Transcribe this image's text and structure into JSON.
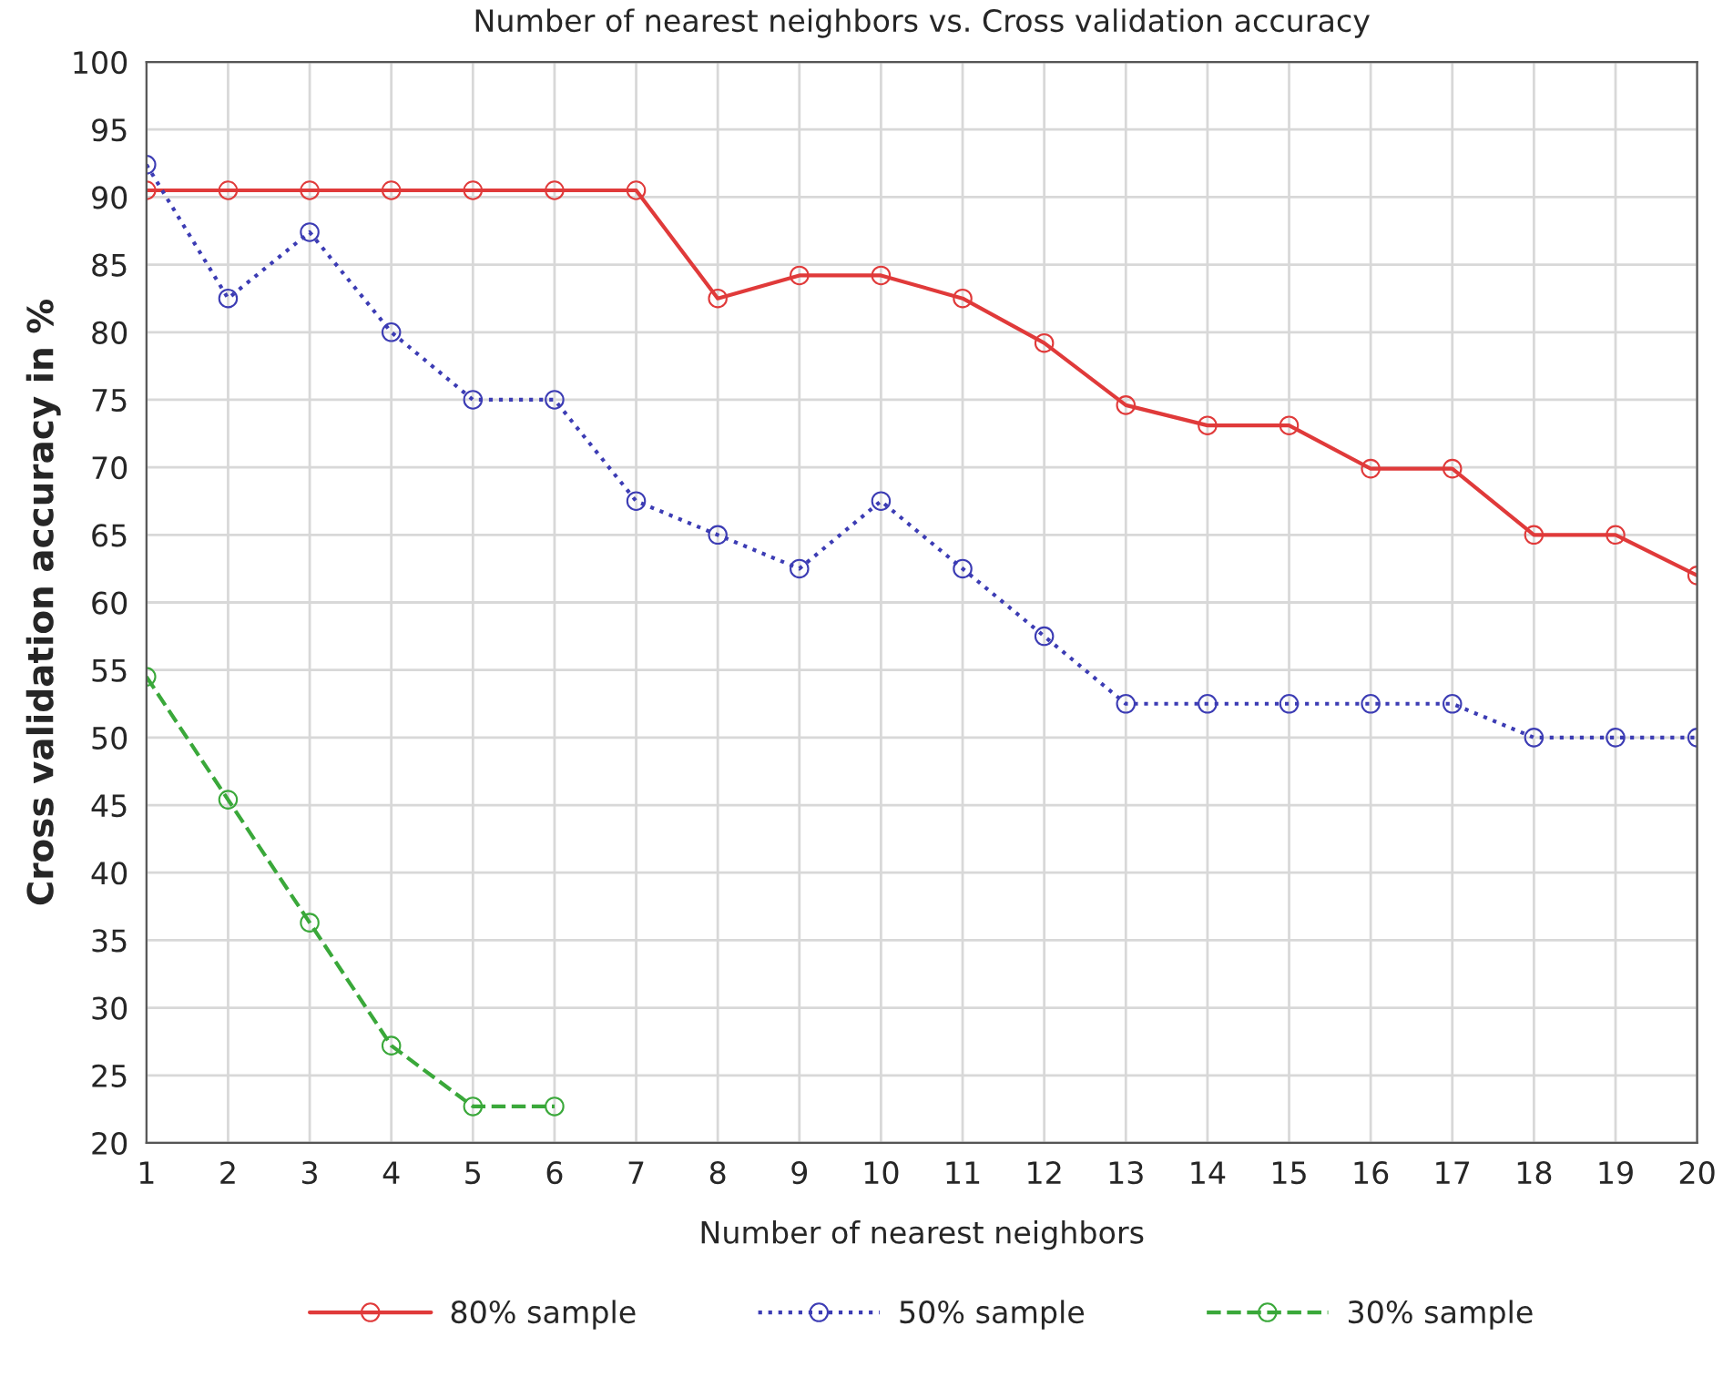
{
  "chart_data": {
    "type": "line",
    "title": "Number of nearest neighbors vs. Cross validation accuracy",
    "xlabel": "Number of nearest neighbors",
    "ylabel": "Cross validation accuracy in %",
    "x": [
      1,
      2,
      3,
      4,
      5,
      6,
      7,
      8,
      9,
      10,
      11,
      12,
      13,
      14,
      15,
      16,
      17,
      18,
      19,
      20
    ],
    "series": [
      {
        "name": "80% sample",
        "color": "#e03a3a",
        "line_style": "solid",
        "values": [
          90.5,
          90.5,
          90.5,
          90.5,
          90.5,
          90.5,
          90.5,
          82.5,
          84.2,
          84.2,
          82.5,
          79.2,
          74.6,
          73.1,
          73.1,
          69.9,
          69.9,
          65,
          65,
          62
        ]
      },
      {
        "name": "50% sample",
        "color": "#3c3cb4",
        "line_style": "dotted",
        "values": [
          92.4,
          82.5,
          87.4,
          80,
          75,
          75,
          67.5,
          65,
          62.5,
          67.5,
          62.5,
          57.5,
          52.5,
          52.5,
          52.5,
          52.5,
          52.5,
          50,
          50,
          50
        ]
      },
      {
        "name": "30% sample",
        "color": "#3aa83a",
        "line_style": "dashed",
        "values": [
          54.5,
          45.4,
          36.3,
          27.2,
          22.7,
          22.7,
          null,
          null,
          null,
          null,
          null,
          null,
          null,
          null,
          null,
          null,
          null,
          null,
          null,
          null
        ]
      }
    ],
    "xlim": [
      1,
      20
    ],
    "xticks": [
      1,
      2,
      3,
      4,
      5,
      6,
      7,
      8,
      9,
      10,
      11,
      12,
      13,
      14,
      15,
      16,
      17,
      18,
      19,
      20
    ],
    "ylim": [
      20,
      100
    ],
    "yticks": [
      20,
      25,
      30,
      35,
      40,
      45,
      50,
      55,
      60,
      65,
      70,
      75,
      80,
      85,
      90,
      95,
      100
    ],
    "grid": true,
    "legend": "bottom",
    "marker": "circle"
  }
}
